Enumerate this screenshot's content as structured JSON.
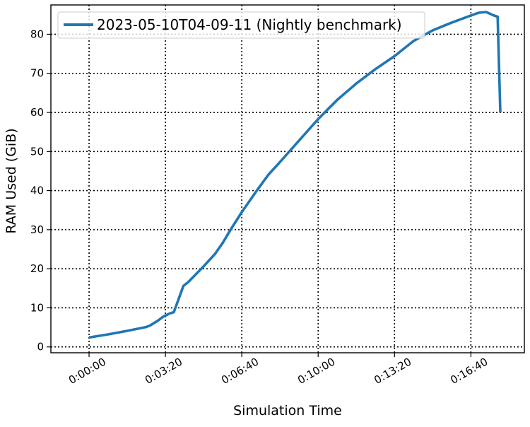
{
  "chart_data": {
    "type": "line",
    "title": "",
    "xlabel": "Simulation Time",
    "ylabel": "RAM Used (GiB)",
    "x_unit": "seconds",
    "xlim": [
      -100,
      1140
    ],
    "ylim": [
      -1.5,
      87.5
    ],
    "x_ticks": [
      0,
      200,
      400,
      600,
      800,
      1000
    ],
    "x_tick_labels": [
      "0:00:00",
      "0:03:20",
      "0:06:40",
      "0:10:00",
      "0:13:20",
      "0:16:40"
    ],
    "y_ticks": [
      0,
      10,
      20,
      30,
      40,
      50,
      60,
      70,
      80
    ],
    "y_tick_labels": [
      "0",
      "10",
      "20",
      "30",
      "40",
      "50",
      "60",
      "70",
      "80"
    ],
    "grid": true,
    "legend_position": "top-left",
    "series": [
      {
        "name": "2023-05-10T04-09-11 (Nightly benchmark)",
        "color": "#1f77b4",
        "x": [
          0,
          50,
          100,
          150,
          160,
          180,
          195,
          210,
          222,
          247,
          260,
          280,
          300,
          330,
          350,
          370,
          400,
          420,
          440,
          470,
          500,
          550,
          600,
          650,
          700,
          750,
          800,
          850,
          900,
          950,
          1000,
          1020,
          1040,
          1060,
          1070,
          1077
        ],
        "y": [
          2.4,
          3.2,
          4.1,
          5.1,
          5.5,
          6.7,
          7.8,
          8.5,
          8.9,
          15.6,
          16.6,
          18.6,
          20.6,
          23.8,
          26.6,
          29.9,
          34.5,
          37.3,
          40.1,
          44.1,
          47.3,
          52.8,
          58.3,
          63.2,
          67.4,
          71.1,
          74.4,
          78.3,
          81.0,
          83.0,
          84.8,
          85.5,
          85.7,
          84.8,
          84.5,
          60.0
        ]
      }
    ]
  }
}
